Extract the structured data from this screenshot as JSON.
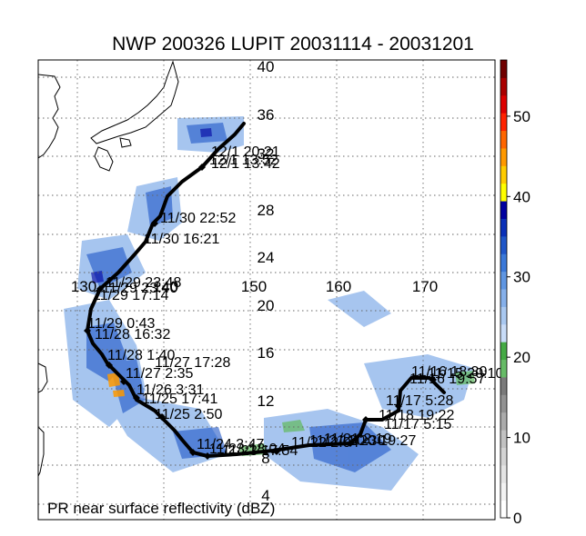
{
  "chart_data": {
    "type": "map",
    "title": "NWP 200326 LUPIT 20031114 - 20031201",
    "caption": "PR near surface reflectivity (dBZ)",
    "lat_ticks": [
      "40",
      "36",
      "32",
      "28",
      "24",
      "20",
      "16",
      "12",
      "8",
      "4"
    ],
    "lon_ticks": [
      "130",
      "140",
      "150",
      "160",
      "170"
    ],
    "colorbar": {
      "ticks": [
        "0",
        "10",
        "20",
        "30",
        "40",
        "50"
      ],
      "range": [
        0,
        57
      ],
      "colors": [
        "#ffffff",
        "#f2f2f2",
        "#e4e4e4",
        "#d4d4d4",
        "#c2c2c2",
        "#ababab",
        "#929292",
        "#7a7a7a",
        "#66bb66",
        "#44aa44",
        "#c8dcf8",
        "#a9c8f0",
        "#86b0ea",
        "#5f96e2",
        "#3a78d8",
        "#1f56c8",
        "#0a30b8",
        "#0000a0",
        "#ffff00",
        "#ffcc00",
        "#ff9900",
        "#ff6600",
        "#ff2200",
        "#dd0000",
        "#aa0000",
        "#700000"
      ]
    },
    "track_labels": [
      "12/1 20:21",
      "12/1 13:52",
      "12/1 13:42",
      "11/30 22:52",
      "11/30 16:21",
      "11/29 23:48",
      "11/29 23:40",
      "11/29 17:14",
      "11/29 0:43",
      "11/28 16:32",
      "11/28 1:40",
      "11/27 17:28",
      "11/27 2:35",
      "11/26 3:31",
      "11/25 17:41",
      "11/25 2:50",
      "11/24 3:47",
      "11/23 18:04",
      "11/23 17:54",
      "11/22 2:04",
      "11/21 20:30",
      "11/21 2:19",
      "11/20 19:27",
      "11/18 19:22",
      "11/17 5:15",
      "11/17 5:28",
      "11/16 19:57",
      "11/16 18:30",
      "11/15 20:10"
    ]
  }
}
